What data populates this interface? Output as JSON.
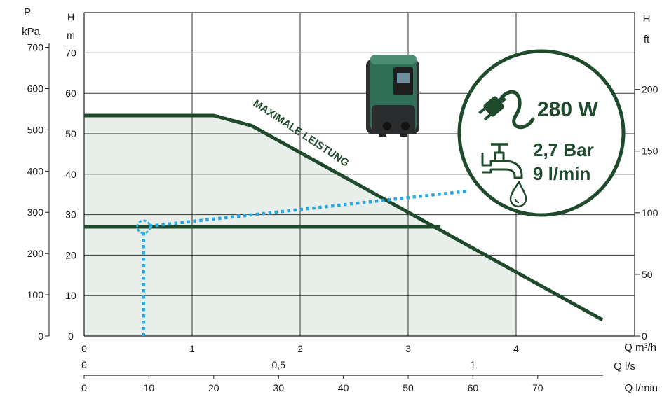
{
  "chart_data": {
    "type": "line",
    "left_axis_pressure": {
      "unit_top": "P",
      "unit_bottom": "kPa",
      "ticks": [
        0,
        100,
        200,
        300,
        400,
        500,
        600,
        700
      ]
    },
    "left_axis_head_m": {
      "unit_top": "H",
      "unit_bottom": "m",
      "ticks": [
        0,
        10,
        20,
        30,
        40,
        50,
        60,
        70
      ],
      "ylim": [
        0,
        80
      ]
    },
    "right_axis_head_ft": {
      "unit_top": "H",
      "unit_bottom": "ft",
      "ticks": [
        0,
        50,
        100,
        150,
        200
      ]
    },
    "x_axis_m3h": {
      "label": "Q m³/h",
      "ticks": [
        0,
        1,
        2,
        3,
        4
      ],
      "xlim": [
        0,
        4.8
      ]
    },
    "x_axis_ls": {
      "label": "Q l/s",
      "ticks": [
        "0",
        "0,5",
        "1"
      ],
      "values": [
        0,
        0.5,
        1
      ]
    },
    "x_axis_lmin": {
      "label": "Q l/min",
      "ticks": [
        0,
        10,
        20,
        30,
        40,
        50,
        60,
        70
      ]
    },
    "series": [
      {
        "name": "MAXIMALE LEISTUNG",
        "x": [
          0,
          1.2,
          1.55,
          4.8
        ],
        "y": [
          54.5,
          54.5,
          52,
          4
        ]
      },
      {
        "x": [
          0,
          3.3
        ],
        "y": [
          27,
          27
        ]
      }
    ],
    "operating_point": {
      "x": 0.55,
      "y": 27
    },
    "badge": {
      "power": "280 W",
      "pressure": "2,7 Bar",
      "flow": "9 l/min"
    }
  },
  "colors": {
    "curve": "#1f4a2c",
    "fill": "#e8eeea",
    "dotted": "#29a8e0",
    "grid": "#333333"
  }
}
